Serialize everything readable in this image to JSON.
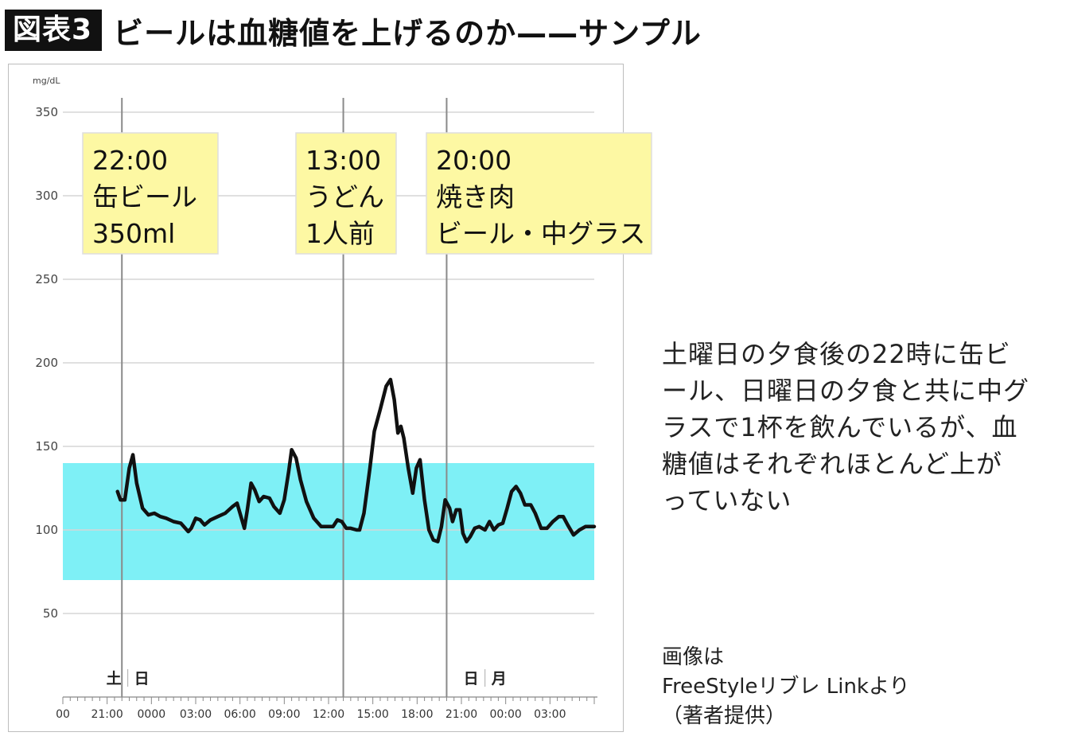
{
  "header": {
    "badge": "図表3",
    "title": "ビールは血糖値を上げるのか——サンプル"
  },
  "caption": {
    "lines": [
      "土曜日の夕食後の22時に缶ビ",
      "ール、日曜日の夕食と共に中グ",
      "ラスで1杯を飲んでいるが、血",
      "糖値はそれぞれほとんど上が",
      "っていない"
    ]
  },
  "source": {
    "lines": [
      "画像は",
      "FreeStyleリブレ Linkより",
      "（著者提供）"
    ]
  },
  "colors": {
    "target_band": "#7ef0f6",
    "series_line": "#111111",
    "annotation_fill": "#fdf8a3",
    "grid": "#d6d6d6"
  },
  "chart_data": {
    "type": "line",
    "ylabel": "mg/dL",
    "ylim": [
      0,
      350
    ],
    "yticks": [
      50,
      100,
      150,
      200,
      250,
      300,
      350
    ],
    "xlim": [
      18,
      54
    ],
    "x_unit": "hours (Saturday 00:00 = 0)",
    "xtick_labels": [
      {
        "x": 18,
        "label": "00"
      },
      {
        "x": 21,
        "label": "21:00"
      },
      {
        "x": 24,
        "label": "0000"
      },
      {
        "x": 27,
        "label": "03:00"
      },
      {
        "x": 30,
        "label": "06:00"
      },
      {
        "x": 33,
        "label": "09:00"
      },
      {
        "x": 36,
        "label": "12:00"
      },
      {
        "x": 39,
        "label": "15:00"
      },
      {
        "x": 42,
        "label": "18:00"
      },
      {
        "x": 45,
        "label": "21:00"
      },
      {
        "x": 48,
        "label": "00:00"
      },
      {
        "x": 51,
        "label": "03:00"
      }
    ],
    "day_labels": [
      {
        "x": 22.4,
        "before": "土",
        "after": "日"
      },
      {
        "x": 46.6,
        "before": "日",
        "after": "月"
      }
    ],
    "target_range": [
      70,
      140
    ],
    "events": [
      {
        "x": 22,
        "time": "22:00",
        "lines": [
          "缶ビール",
          "350ml"
        ]
      },
      {
        "x": 37,
        "time": "13:00",
        "lines": [
          "うどん",
          "1人前"
        ]
      },
      {
        "x": 44,
        "time": "20:00",
        "lines": [
          "焼き肉",
          "ビール・中グラス"
        ]
      }
    ],
    "series": [
      {
        "points": [
          [
            21.7,
            123
          ],
          [
            21.9,
            118
          ],
          [
            22.2,
            118
          ],
          [
            22.5,
            137
          ],
          [
            22.75,
            145
          ],
          [
            23.0,
            128
          ],
          [
            23.4,
            113
          ],
          [
            23.8,
            109
          ],
          [
            24.2,
            110
          ],
          [
            24.6,
            108
          ],
          [
            25.0,
            107
          ],
          [
            25.5,
            105
          ],
          [
            26.0,
            104
          ],
          [
            26.5,
            99
          ],
          [
            26.7,
            101
          ],
          [
            27.0,
            107
          ],
          [
            27.3,
            106
          ],
          [
            27.6,
            103
          ],
          [
            28.0,
            106
          ],
          [
            28.5,
            108
          ],
          [
            29.0,
            110
          ],
          [
            29.5,
            114
          ],
          [
            29.8,
            116
          ],
          [
            30.0,
            110
          ],
          [
            30.3,
            101
          ],
          [
            30.5,
            112
          ],
          [
            30.75,
            128
          ],
          [
            31.0,
            124
          ],
          [
            31.3,
            117
          ],
          [
            31.6,
            120
          ],
          [
            32.0,
            119
          ],
          [
            32.3,
            114
          ],
          [
            32.7,
            110
          ],
          [
            33.0,
            118
          ],
          [
            33.3,
            135
          ],
          [
            33.5,
            148
          ],
          [
            33.8,
            143
          ],
          [
            34.1,
            130
          ],
          [
            34.5,
            117
          ],
          [
            35.0,
            107
          ],
          [
            35.5,
            102
          ],
          [
            36.0,
            102
          ],
          [
            36.3,
            102
          ],
          [
            36.6,
            106
          ],
          [
            36.9,
            105
          ],
          [
            37.2,
            101
          ],
          [
            37.5,
            101
          ],
          [
            37.9,
            100
          ],
          [
            38.1,
            100
          ],
          [
            38.4,
            110
          ],
          [
            38.8,
            137
          ],
          [
            39.1,
            159
          ],
          [
            39.5,
            172
          ],
          [
            39.9,
            186
          ],
          [
            40.2,
            190
          ],
          [
            40.45,
            178
          ],
          [
            40.7,
            158
          ],
          [
            40.9,
            162
          ],
          [
            41.1,
            155
          ],
          [
            41.4,
            137
          ],
          [
            41.7,
            122
          ],
          [
            41.95,
            137
          ],
          [
            42.2,
            142
          ],
          [
            42.5,
            118
          ],
          [
            42.8,
            100
          ],
          [
            43.1,
            94
          ],
          [
            43.4,
            93
          ],
          [
            43.65,
            102
          ],
          [
            43.9,
            118
          ],
          [
            44.2,
            113
          ],
          [
            44.4,
            105
          ],
          [
            44.65,
            112
          ],
          [
            44.9,
            112
          ],
          [
            45.1,
            98
          ],
          [
            45.35,
            93
          ],
          [
            45.6,
            96
          ],
          [
            45.9,
            101
          ],
          [
            46.2,
            102
          ],
          [
            46.6,
            100
          ],
          [
            46.9,
            105
          ],
          [
            47.2,
            100
          ],
          [
            47.5,
            103
          ],
          [
            47.8,
            104
          ],
          [
            48.1,
            113
          ],
          [
            48.4,
            123
          ],
          [
            48.7,
            126
          ],
          [
            49.0,
            122
          ],
          [
            49.3,
            115
          ],
          [
            49.7,
            115
          ],
          [
            50.0,
            110
          ],
          [
            50.4,
            101
          ],
          [
            50.8,
            101
          ],
          [
            51.2,
            105
          ],
          [
            51.6,
            108
          ],
          [
            51.9,
            108
          ],
          [
            52.2,
            103
          ],
          [
            52.6,
            97
          ],
          [
            53.0,
            100
          ],
          [
            53.4,
            102
          ],
          [
            53.8,
            102
          ],
          [
            54.0,
            102
          ]
        ]
      }
    ]
  }
}
